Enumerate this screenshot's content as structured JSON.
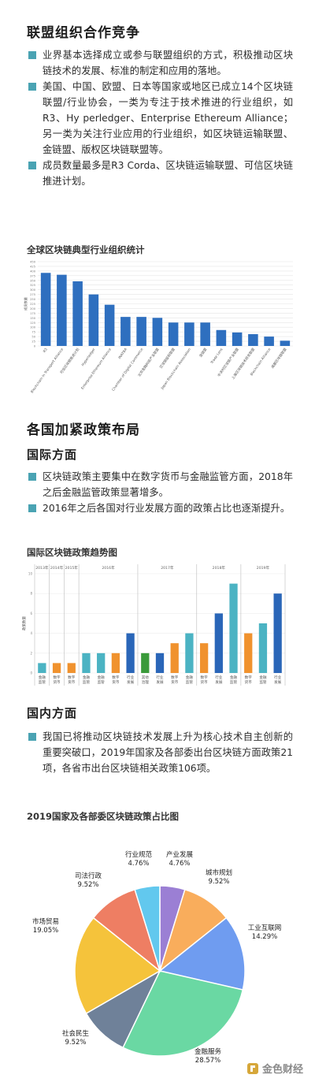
{
  "section1": {
    "title": "联盟组织合作竞争",
    "bullets": [
      "业界基本选择成立或参与联盟组织的方式，积极推动区块链技术的发展、标准的制定和应用的落地。",
      "美国、中国、欧盟、日本等国家或地区已成立14个区块链联盟/行业协会，一类为专注于技术推进的行业组织，如R3、Hy perledger、Enterprise Ethereum Alliance；另一类为关注行业应用的行业组织，如区块链运输联盟、金链盟、版权区块链联盟等。",
      "成员数量最多是R3 Corda、区块链运输联盟、可信区块链推进计划。"
    ]
  },
  "chart1": {
    "title": "全球区块链典型行业组织统计"
  },
  "section2": {
    "title": "各国加紧政策布局",
    "sub1": "国际方面",
    "bullets1": [
      "区块链政策主要集中在数字货币与金融监管方面，2018年之后金融监管政策显著增多。",
      "2016年之后各国对行业发展方面的政策占比也逐渐提升。"
    ]
  },
  "chart2": {
    "title": "国际区块链政策趋势图"
  },
  "section3": {
    "sub2": "国内方面",
    "bullets2": [
      "我国已将推动区块链技术发展上升为核心技术自主创新的重要突破口，2019年国家及各部委出台区块链方面政策21项，各省市出台区块链相关政策106项。"
    ]
  },
  "chart3": {
    "title": "2019国家及各部委区块链政策占比图"
  },
  "watermark": "金色财经",
  "chart_data": [
    {
      "type": "bar",
      "title": "全球区块链典型行业组织统计",
      "ylabel": "成员数量",
      "ylim": [
        0,
        450
      ],
      "yticks": [
        0,
        25,
        50,
        75,
        100,
        125,
        150,
        175,
        200,
        225,
        250,
        275,
        300,
        325,
        350,
        375,
        400,
        425,
        450
      ],
      "categories": [
        "R3",
        "Blockchain in Transport Alliance",
        "可信区块链推进计划",
        "Hyperledger",
        "Enterprise Ethereum Alliance",
        "INATBA",
        "Chamber of Digital Commerce",
        "北京金融科技产业联盟",
        "区块链版权联盟",
        "Japan Blockchain Association",
        "金链盟",
        "Trade Lens",
        "中关村区块链产业联盟",
        "上海区块链技术研发联盟",
        "Blockchain Alliance",
        "成都区块链联盟"
      ],
      "values": [
        390,
        380,
        345,
        275,
        220,
        155,
        155,
        150,
        125,
        125,
        125,
        85,
        72,
        63,
        50,
        28
      ],
      "color": "#2e6fbf"
    },
    {
      "type": "bar",
      "title": "国际区块链政策趋势图",
      "ylabel": "政策数量",
      "ylim": [
        0,
        10
      ],
      "yticks": [
        0,
        2,
        4,
        6,
        8,
        10
      ],
      "groups": [
        "2013年",
        "2014年",
        "2015年",
        "2016年",
        "2017年",
        "2018年",
        "2019年"
      ],
      "categories": [
        "金融监管",
        "数字货币",
        "数字货币",
        "金融监管",
        "金融监管",
        "数字货币",
        "行业发展",
        "其他治理",
        "行业发展",
        "数字货币",
        "金融监管",
        "数字货币",
        "行业发展",
        "金融监管",
        "数字货币",
        "金融监管",
        "行业发展"
      ],
      "values": [
        1,
        1,
        1,
        2,
        2,
        2,
        4,
        2,
        2,
        3,
        4,
        3,
        6,
        9,
        4,
        5,
        8
      ],
      "group_of_bar": [
        0,
        1,
        2,
        3,
        3,
        3,
        3,
        4,
        4,
        4,
        4,
        5,
        5,
        5,
        6,
        6,
        6
      ],
      "category_colors": {
        "金融监管": "#4bb3c3",
        "数字货币": "#f0922e",
        "行业发展": "#2a66b8",
        "其他治理": "#3a9a3a"
      }
    },
    {
      "type": "pie",
      "title": "2019国家及各部委区块链政策占比图",
      "slices": [
        {
          "label": "产业发展",
          "value": 4.76,
          "pct": "4.76%",
          "color": "#9b7fd4"
        },
        {
          "label": "城市规划",
          "value": 9.52,
          "pct": "9.52%",
          "color": "#f9ad5c"
        },
        {
          "label": "工业互联网",
          "value": 14.29,
          "pct": "14.29%",
          "color": "#6f9cf0"
        },
        {
          "label": "金融服务",
          "value": 28.57,
          "pct": "28.57%",
          "color": "#6ad8a3"
        },
        {
          "label": "社会民生",
          "value": 9.52,
          "pct": "9.52%",
          "color": "#6f8199"
        },
        {
          "label": "市场贸易",
          "value": 19.05,
          "pct": "19.05%",
          "color": "#f5c33b"
        },
        {
          "label": "司法行政",
          "value": 9.52,
          "pct": "9.52%",
          "color": "#ee7e63"
        },
        {
          "label": "行业规范",
          "value": 4.76,
          "pct": "4.76%",
          "color": "#62c8ee"
        }
      ]
    }
  ]
}
